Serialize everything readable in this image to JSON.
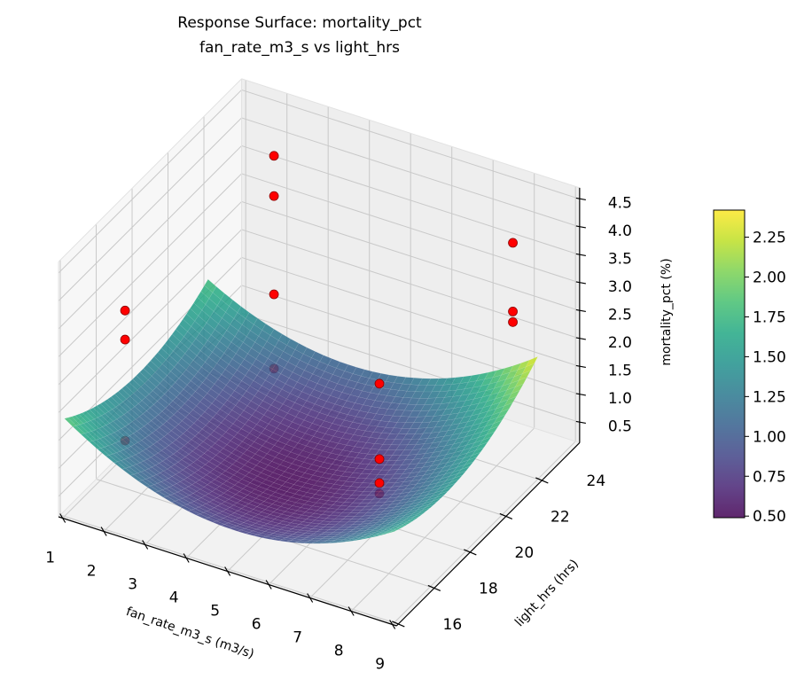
{
  "chart_data": {
    "type": "surface",
    "title": [
      "Response Surface: mortality_pct",
      "fan_rate_m3_s vs light_hrs"
    ],
    "xlabel": "fan_rate_m3_s (m3/s)",
    "ylabel": "light_hrs (hrs)",
    "zlabel": "mortality_pct (%)",
    "xlim": [
      0.9,
      9.1
    ],
    "ylim": [
      15.9,
      26.1
    ],
    "zlim": [
      0.135,
      4.7
    ],
    "x_ticks": [
      "1",
      "2",
      "3",
      "4",
      "5",
      "6",
      "7",
      "8",
      "9"
    ],
    "y_ticks": [
      "16",
      "18",
      "20",
      "22",
      "24"
    ],
    "z_ticks": [
      "0.5",
      "1.0",
      "1.5",
      "2.0",
      "2.5",
      "3.0",
      "3.5",
      "4.0",
      "4.5"
    ],
    "grid": true,
    "surface": {
      "model": "quadratic",
      "x_range": [
        1,
        9
      ],
      "y_range": [
        16,
        24
      ],
      "coefficients": {
        "const": 14.2825,
        "x": -0.775,
        "y": -1.22,
        "x2": 0.06,
        "y2": 0.03,
        "xy": 0.01
      },
      "colormap": "viridis",
      "alpha": 0.85
    },
    "points": [
      [
        1.6,
        18,
        3.32
      ],
      [
        1.6,
        18,
        2.8
      ],
      [
        1.6,
        18,
        0.99
      ],
      [
        2.6,
        24,
        4.4
      ],
      [
        2.6,
        24,
        3.68
      ],
      [
        2.6,
        24,
        1.92
      ],
      [
        2.6,
        24,
        0.59
      ],
      [
        6.9,
        20,
        2.63
      ],
      [
        6.9,
        20,
        1.28
      ],
      [
        6.9,
        20,
        0.85
      ],
      [
        6.9,
        20,
        0.66
      ],
      [
        8.7,
        23.3,
        4.52
      ],
      [
        8.7,
        23.3,
        3.29
      ],
      [
        8.7,
        23.3,
        3.1
      ]
    ],
    "point_color": "#ff0000",
    "point_edge_color": "#8b0000",
    "colorbar": {
      "range": [
        0.49,
        2.42
      ],
      "ticks": [
        "0.50",
        "0.75",
        "1.00",
        "1.25",
        "1.50",
        "1.75",
        "2.00",
        "2.25"
      ],
      "placement": "right"
    }
  },
  "colors": {
    "pane_floor": "#f2f2f2",
    "pane_left": "#f7f7f7",
    "pane_back": "#eeeeee",
    "grid": "#c9c9c9",
    "axis": "#000000"
  }
}
